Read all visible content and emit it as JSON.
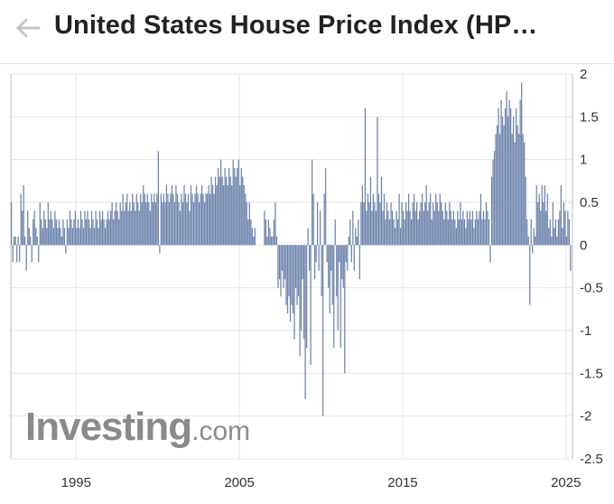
{
  "header": {
    "title": "United States House Price Index (HP…",
    "back_icon": "arrow-left-icon"
  },
  "watermark": {
    "brand": "Investing",
    "suffix": ".com"
  },
  "colors": {
    "bar": "#6d84ad",
    "grid": "#e6e6e6",
    "axis": "#bdbdbd"
  },
  "chart_data": {
    "type": "bar",
    "title": "United States House Price Index (HP…",
    "xlabel": "",
    "ylabel": "",
    "x_range": [
      1991.0,
      2025.4
    ],
    "ylim": [
      -2.5,
      2
    ],
    "y_ticks": [
      2,
      1.5,
      1,
      0.5,
      0,
      -0.5,
      -1,
      -1.5,
      -2,
      -2.5
    ],
    "x_ticks": [
      1995,
      2005,
      2015,
      2025
    ],
    "grid": true,
    "legend": "none",
    "series": [
      {
        "segments": [
          {
            "start": 1991.0,
            "values": [
              0.5,
              -0.2,
              0.1,
              0.1,
              -0.2,
              0.1,
              -0.2,
              0.6,
              0.4,
              0.7,
              0.1,
              -0.3,
              0.4,
              0.2,
              0.1,
              -0.2,
              0.3,
              0.4,
              0.2,
              0.1,
              -0.2,
              0.5,
              0.3,
              0.2,
              0.4,
              0.3,
              0.2,
              0.5,
              0.3,
              0.4,
              0.3,
              0.2,
              0.4,
              0.3,
              0.2,
              0.3,
              0.2,
              0.1,
              0.3,
              0.2,
              -0.1,
              0.3,
              0.2,
              0.4,
              0.3,
              0.2,
              0.3,
              0.4,
              0.2,
              0.3,
              0.2,
              0.4,
              0.3,
              0.2,
              0.4,
              0.3,
              0.4,
              0.3,
              0.2,
              0.4,
              0.3,
              0.2,
              0.4,
              0.3,
              0.2,
              0.4,
              0.3,
              0.4,
              0.3,
              0.2,
              0.3,
              0.4
            ]
          },
          {
            "start": 1997.0,
            "values": [
              0.3,
              0.4,
              0.5,
              0.3,
              0.4,
              0.5,
              0.4,
              0.3,
              0.5,
              0.4,
              0.6,
              0.4,
              0.5,
              0.6,
              0.4,
              0.5,
              0.4,
              0.6,
              0.5,
              0.4,
              0.6,
              0.5,
              0.4,
              0.6,
              0.5,
              0.7,
              0.6,
              0.5,
              0.6,
              0.5,
              0.4,
              0.6,
              0.5,
              0.6,
              0.5,
              0.6,
              1.1,
              -0.1,
              0.6,
              0.5,
              0.6,
              0.5,
              0.7,
              0.6,
              0.5,
              0.6,
              0.7,
              0.6,
              0.5,
              0.7,
              0.6,
              0.5,
              0.4,
              0.6,
              0.5,
              0.7,
              0.6,
              0.5,
              0.6,
              0.4,
              0.7,
              0.6,
              0.5,
              0.6,
              0.7,
              0.6,
              0.5,
              0.6,
              0.7,
              0.6,
              0.5,
              0.6
            ]
          },
          {
            "start": 2003.0,
            "values": [
              0.6,
              0.7,
              0.6,
              0.8,
              0.7,
              0.6,
              0.8,
              0.7,
              0.9,
              0.8,
              1.0,
              0.8,
              0.7,
              0.9,
              0.8,
              0.7,
              0.9,
              0.8,
              0.7,
              1.0,
              0.9,
              0.8,
              0.9,
              1.0,
              0.7,
              0.9,
              0.8,
              0.7,
              0.6,
              0.5,
              0.3,
              0.5,
              0.3,
              0.2,
              0.1,
              0.2
            ]
          },
          {
            "start": 2006.5,
            "values": [
              0.4,
              0.3,
              0.1,
              0.3,
              0.2,
              0.1,
              0.1,
              0.3,
              0.5,
              0.1,
              -0.5,
              -0.4,
              -0.6,
              -0.3,
              -0.5,
              -0.4,
              -0.7,
              -0.8,
              -0.6,
              -0.9,
              -0.7,
              -0.8,
              -1.1,
              -0.5,
              -0.7,
              -0.6,
              -1.3,
              -1.0,
              -0.4,
              -1.1,
              -1.8,
              -1.2,
              0.2,
              -0.3,
              -1.4,
              1.0,
              0.6,
              -0.4,
              -0.2,
              0.5,
              -0.3,
              0.4,
              -0.6,
              -2.0,
              0.6,
              0.9,
              -0.2,
              -0.5,
              -0.8,
              -0.3,
              -0.7,
              -1.2,
              0.3,
              -0.6,
              -1.0,
              -0.2,
              -1.2,
              -0.4,
              -0.5,
              -1.5,
              -0.2,
              -0.3,
              0.1,
              0.3,
              -0.2,
              0.4,
              -0.3,
              0.2,
              0.1,
              0.3,
              -0.4,
              0.5
            ]
          },
          {
            "start": 2012.5,
            "values": [
              0.7,
              0.5,
              1.6,
              0.4,
              0.6,
              0.5,
              0.8,
              0.4,
              0.6,
              0.5,
              0.4,
              1.5,
              0.6,
              0.5,
              0.8,
              0.4,
              0.6,
              0.3,
              0.5,
              0.4,
              0.3,
              0.5,
              0.4,
              0.3,
              0.2,
              0.4,
              0.3,
              0.6,
              0.2,
              0.5,
              0.4,
              0.3,
              0.5,
              0.4,
              0.6,
              0.4,
              0.3,
              0.5,
              0.6,
              0.4,
              0.5,
              0.3,
              0.4,
              0.5,
              0.6,
              0.4,
              0.5,
              0.7,
              0.4,
              0.5,
              0.6,
              0.3,
              0.5,
              0.4,
              0.6,
              0.5,
              0.4,
              0.6,
              0.5,
              0.4,
              0.3,
              0.5,
              0.4,
              0.3,
              0.5,
              0.4,
              0.3,
              0.4,
              0.3,
              0.2,
              0.4,
              0.3
            ]
          },
          {
            "start": 2018.5,
            "values": [
              0.5,
              0.3,
              0.4,
              0.3,
              0.2,
              0.4,
              0.3,
              0.4,
              0.3,
              0.4,
              0.2,
              0.3,
              0.4,
              0.3,
              0.4,
              0.6,
              0.3,
              0.4,
              0.3,
              0.5,
              0.4,
              0.3,
              -0.2,
              0.8,
              1.0,
              1.1,
              1.3,
              1.4,
              1.6,
              1.3,
              1.7,
              1.5,
              1.4,
              1.6,
              1.8,
              1.5,
              1.7,
              1.6,
              1.3,
              1.5,
              1.2,
              1.6,
              1.4,
              1.3,
              1.7,
              1.9,
              1.3,
              1.2,
              0.8,
              0.3,
              0.1,
              -0.7,
              0.3,
              -0.1,
              0.2,
              0.1,
              0.7,
              0.5,
              0.6,
              0.4,
              0.7,
              0.5,
              0.7,
              0.4,
              0.6,
              0.2,
              0.3,
              0.1,
              0.5,
              0.2,
              0.3,
              0.1
            ]
          },
          {
            "start": 2024.5,
            "values": [
              0.3,
              0.4,
              0.7,
              0.2,
              0.5,
              0.4,
              0.1,
              0.4,
              0.3,
              -0.3
            ]
          }
        ]
      }
    ]
  }
}
